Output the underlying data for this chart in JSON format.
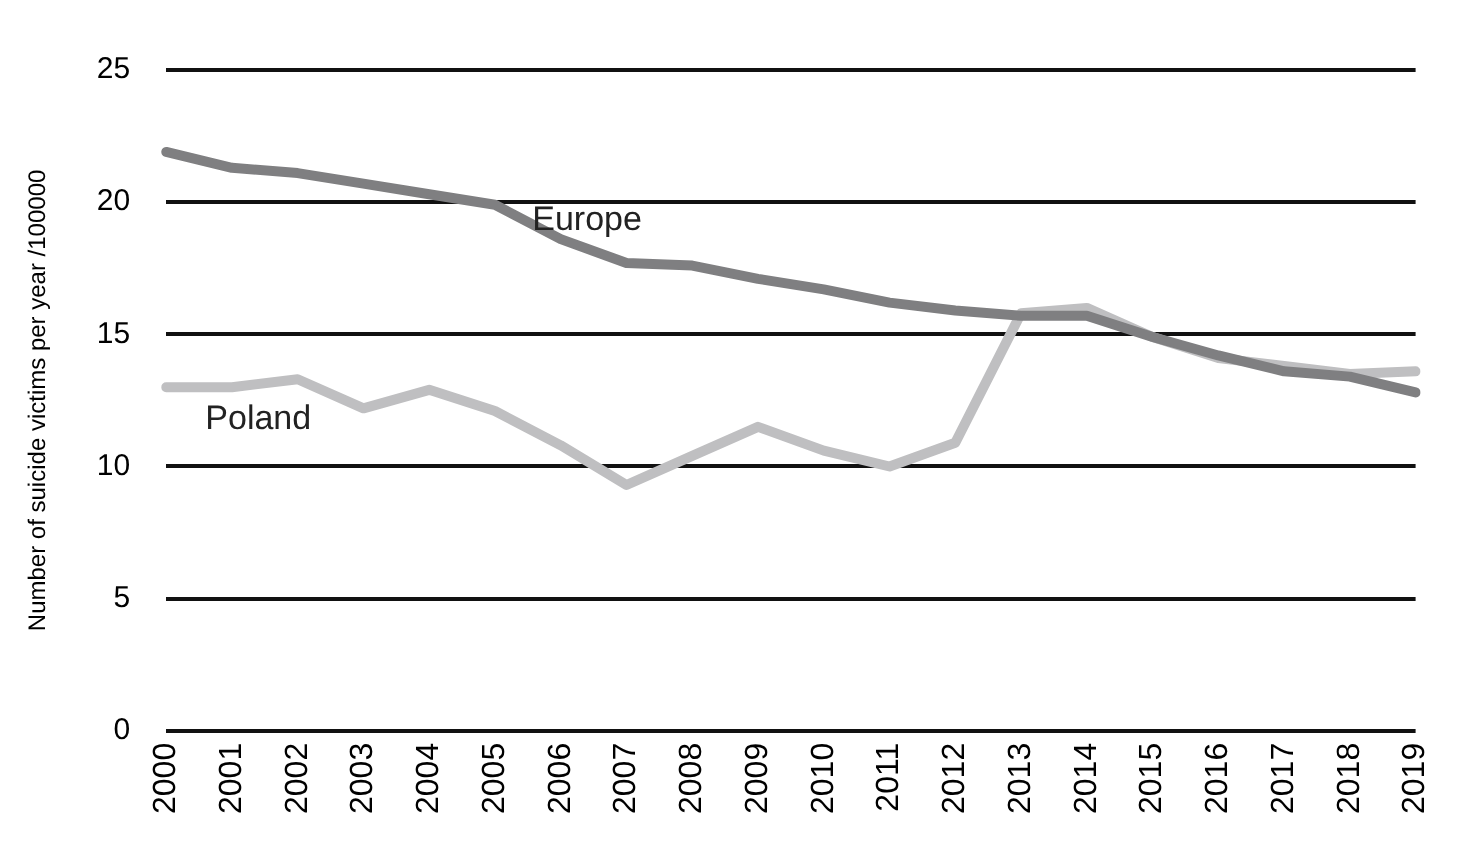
{
  "chart_data": {
    "type": "line",
    "ylabel": "Number of suicide victims per year /100000",
    "categories": [
      "2000",
      "2001",
      "2002",
      "2003",
      "2004",
      "2005",
      "2006",
      "2007",
      "2008",
      "2009",
      "2010",
      "2011",
      "2012",
      "2013",
      "2014",
      "2015",
      "2016",
      "2017",
      "2018",
      "2019"
    ],
    "series": [
      {
        "name": "Europe",
        "color": "#7f7f81",
        "values": [
          21.9,
          21.3,
          21.1,
          20.7,
          20.3,
          19.9,
          18.6,
          17.7,
          17.6,
          17.1,
          16.7,
          16.2,
          15.9,
          15.7,
          15.7,
          14.9,
          14.2,
          13.6,
          13.4,
          12.8
        ]
      },
      {
        "name": "Poland",
        "color": "#bfbfc1",
        "values": [
          13.0,
          13.0,
          13.3,
          12.2,
          12.9,
          12.1,
          10.8,
          9.3,
          10.4,
          11.5,
          10.6,
          10.0,
          10.9,
          15.8,
          16.0,
          14.9,
          14.1,
          13.8,
          13.5,
          13.6
        ]
      }
    ],
    "ylim": [
      0,
      25
    ],
    "yticks": [
      0,
      5,
      10,
      15,
      20,
      25
    ],
    "grid": "y",
    "legend": false,
    "marker": "none",
    "line_style": "solid"
  }
}
